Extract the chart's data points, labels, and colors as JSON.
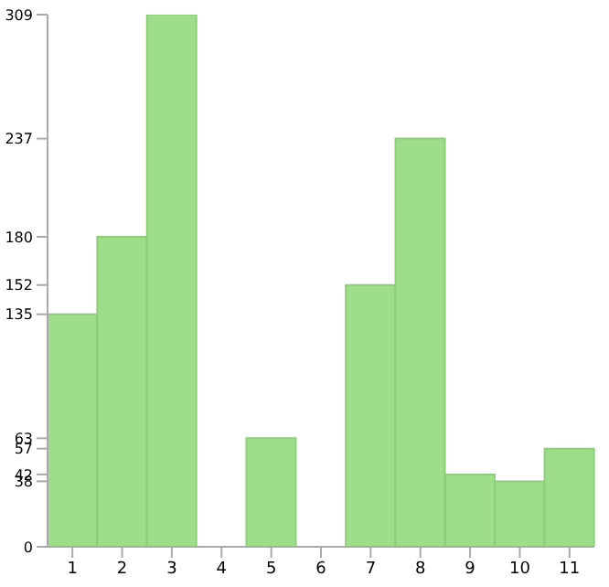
{
  "chart_data": {
    "type": "bar",
    "categories": [
      "1",
      "2",
      "3",
      "4",
      "5",
      "6",
      "7",
      "8",
      "9",
      "10",
      "11"
    ],
    "values": [
      135,
      180,
      309,
      0,
      63,
      0,
      152,
      237,
      42,
      38,
      57
    ],
    "color": "#9ede8a",
    "ylim": [
      0,
      309
    ],
    "yticks": [
      0,
      38,
      42,
      57,
      63,
      135,
      152,
      180,
      237,
      309
    ],
    "grid": false
  }
}
